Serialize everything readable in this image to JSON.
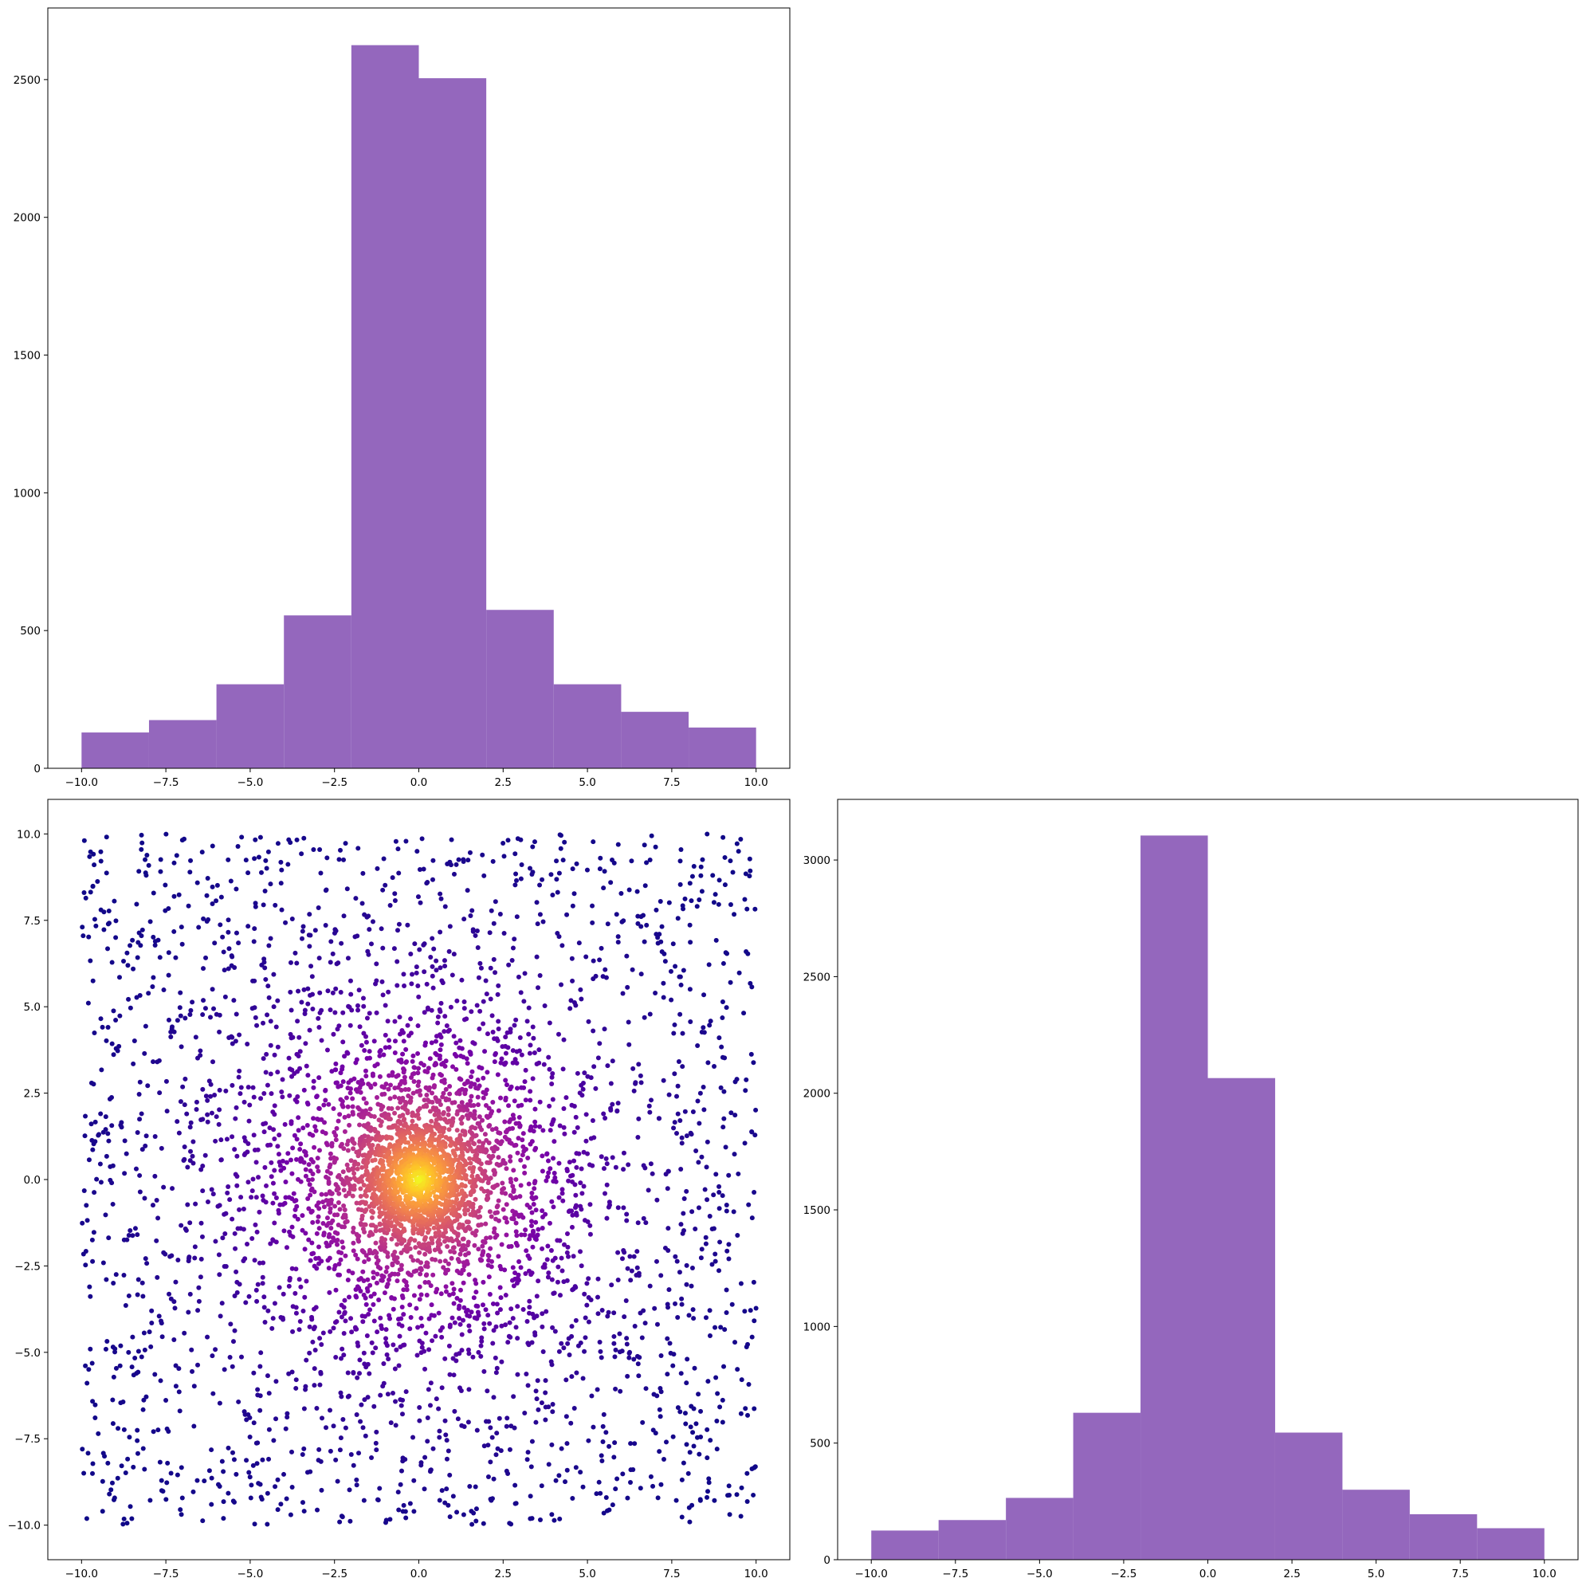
{
  "colors": {
    "bar_fill": "#9467bd",
    "scatter_colormap": [
      "#0d0887",
      "#46039f",
      "#7201a8",
      "#9c179e",
      "#bd3786",
      "#d8576b",
      "#ed7953",
      "#fb9f3a",
      "#fdca26",
      "#f0f921"
    ]
  },
  "chart_data": [
    {
      "id": "hist-x",
      "type": "bar",
      "title": "",
      "xlabel": "",
      "ylabel": "",
      "bin_edges": [
        -10,
        -8,
        -6,
        -4,
        -2,
        0,
        2,
        4,
        6,
        8,
        10
      ],
      "values": [
        130,
        175,
        305,
        555,
        2625,
        2505,
        575,
        305,
        205,
        148
      ],
      "xlim": [
        -11,
        11
      ],
      "ylim": [
        0,
        2760
      ],
      "xticks": [
        -10.0,
        -7.5,
        -5.0,
        -2.5,
        0.0,
        2.5,
        5.0,
        7.5,
        10.0
      ],
      "xtick_labels": [
        "−10.0",
        "−7.5",
        "−5.0",
        "−2.5",
        "0.0",
        "2.5",
        "5.0",
        "7.5",
        "10.0"
      ],
      "yticks": [
        0,
        500,
        1000,
        1500,
        2000,
        2500
      ],
      "ytick_labels": [
        "0",
        "500",
        "1000",
        "1500",
        "2000",
        "2500"
      ],
      "grid": false,
      "legend": "none"
    },
    {
      "id": "scatter-xy",
      "type": "scatter",
      "title": "",
      "xlabel": "",
      "ylabel": "",
      "description_of_data": "about 5000 points in [-10,10]x[-10,10]; mixture of uniform background and a central concentration near (0,0); colored by density (plasma)",
      "point_count": 5000,
      "xlim": [
        -11,
        11
      ],
      "ylim": [
        -11,
        11
      ],
      "xticks": [
        -10.0,
        -7.5,
        -5.0,
        -2.5,
        0.0,
        2.5,
        5.0,
        7.5,
        10.0
      ],
      "xtick_labels": [
        "−10.0",
        "−7.5",
        "−5.0",
        "−2.5",
        "0.0",
        "2.5",
        "5.0",
        "7.5",
        "10.0"
      ],
      "yticks": [
        -10.0,
        -7.5,
        -5.0,
        -2.5,
        0.0,
        2.5,
        5.0,
        7.5,
        10.0
      ],
      "ytick_labels": [
        "−10.0",
        "−7.5",
        "−5.0",
        "−2.5",
        "0.0",
        "2.5",
        "5.0",
        "7.5",
        "10.0"
      ],
      "grid": false,
      "legend": "none"
    },
    {
      "id": "hist-y",
      "type": "bar",
      "title": "",
      "xlabel": "",
      "ylabel": "",
      "bin_edges": [
        -10,
        -8,
        -6,
        -4,
        -2,
        0,
        2,
        4,
        6,
        8,
        10
      ],
      "values": [
        125,
        170,
        265,
        630,
        3105,
        2065,
        545,
        300,
        195,
        135
      ],
      "xlim": [
        -11,
        11
      ],
      "ylim": [
        0,
        3260
      ],
      "xticks": [
        -10.0,
        -7.5,
        -5.0,
        -2.5,
        0.0,
        2.5,
        5.0,
        7.5,
        10.0
      ],
      "xtick_labels": [
        "−10.0",
        "−7.5",
        "−5.0",
        "−2.5",
        "0.0",
        "2.5",
        "5.0",
        "7.5",
        "10.0"
      ],
      "yticks": [
        0,
        500,
        1000,
        1500,
        2000,
        2500,
        3000
      ],
      "ytick_labels": [
        "0",
        "500",
        "1000",
        "1500",
        "2000",
        "2500",
        "3000"
      ],
      "grid": false,
      "legend": "none"
    }
  ]
}
